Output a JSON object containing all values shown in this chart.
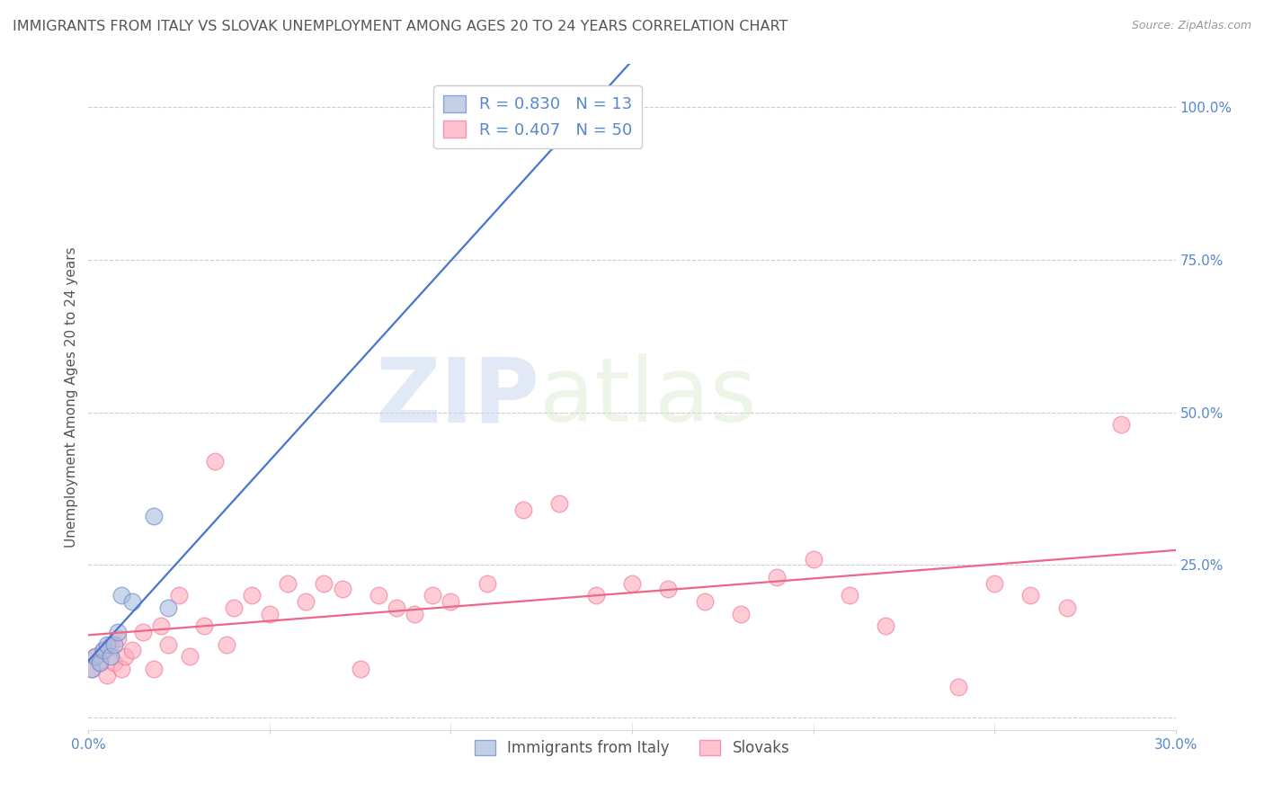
{
  "title": "IMMIGRANTS FROM ITALY VS SLOVAK UNEMPLOYMENT AMONG AGES 20 TO 24 YEARS CORRELATION CHART",
  "source": "Source: ZipAtlas.com",
  "ylabel": "Unemployment Among Ages 20 to 24 years",
  "xlim": [
    0.0,
    0.3
  ],
  "ylim": [
    -0.02,
    1.07
  ],
  "x_ticks": [
    0.0,
    0.05,
    0.1,
    0.15,
    0.2,
    0.25,
    0.3
  ],
  "x_tick_labels": [
    "0.0%",
    "",
    "",
    "",
    "",
    "",
    "30.0%"
  ],
  "y_ticks_right": [
    0.0,
    0.25,
    0.5,
    0.75,
    1.0
  ],
  "y_tick_labels_right": [
    "",
    "25.0%",
    "50.0%",
    "75.0%",
    "100.0%"
  ],
  "grid_color": "#cccccc",
  "background_color": "#ffffff",
  "blue_fill_color": "#aabbdd",
  "blue_edge_color": "#6688cc",
  "pink_fill_color": "#ffaabb",
  "pink_edge_color": "#ee7799",
  "blue_line_color": "#4477cc",
  "pink_line_color": "#ee6688",
  "blue_R": 0.83,
  "blue_N": 13,
  "pink_R": 0.407,
  "pink_N": 50,
  "title_color": "#555555",
  "axis_color": "#5588cc",
  "legend_label_blue": "Immigrants from Italy",
  "legend_label_pink": "Slovaks",
  "blue_scatter_x": [
    0.001,
    0.002,
    0.003,
    0.004,
    0.005,
    0.006,
    0.007,
    0.008,
    0.009,
    0.012,
    0.018,
    0.022,
    0.135
  ],
  "blue_scatter_y": [
    0.08,
    0.1,
    0.09,
    0.11,
    0.12,
    0.1,
    0.12,
    0.14,
    0.2,
    0.19,
    0.33,
    0.18,
    0.97
  ],
  "pink_scatter_x": [
    0.001,
    0.002,
    0.003,
    0.004,
    0.005,
    0.006,
    0.007,
    0.008,
    0.009,
    0.01,
    0.012,
    0.015,
    0.018,
    0.02,
    0.022,
    0.025,
    0.028,
    0.032,
    0.035,
    0.038,
    0.04,
    0.045,
    0.05,
    0.055,
    0.06,
    0.065,
    0.07,
    0.075,
    0.08,
    0.085,
    0.09,
    0.095,
    0.1,
    0.11,
    0.12,
    0.13,
    0.14,
    0.15,
    0.16,
    0.17,
    0.18,
    0.19,
    0.2,
    0.21,
    0.22,
    0.24,
    0.25,
    0.26,
    0.27,
    0.285
  ],
  "pink_scatter_y": [
    0.08,
    0.1,
    0.09,
    0.11,
    0.07,
    0.12,
    0.09,
    0.13,
    0.08,
    0.1,
    0.11,
    0.14,
    0.08,
    0.15,
    0.12,
    0.2,
    0.1,
    0.15,
    0.42,
    0.12,
    0.18,
    0.2,
    0.17,
    0.22,
    0.19,
    0.22,
    0.21,
    0.08,
    0.2,
    0.18,
    0.17,
    0.2,
    0.19,
    0.22,
    0.34,
    0.35,
    0.2,
    0.22,
    0.21,
    0.19,
    0.17,
    0.23,
    0.26,
    0.2,
    0.15,
    0.05,
    0.22,
    0.2,
    0.18,
    0.48
  ]
}
